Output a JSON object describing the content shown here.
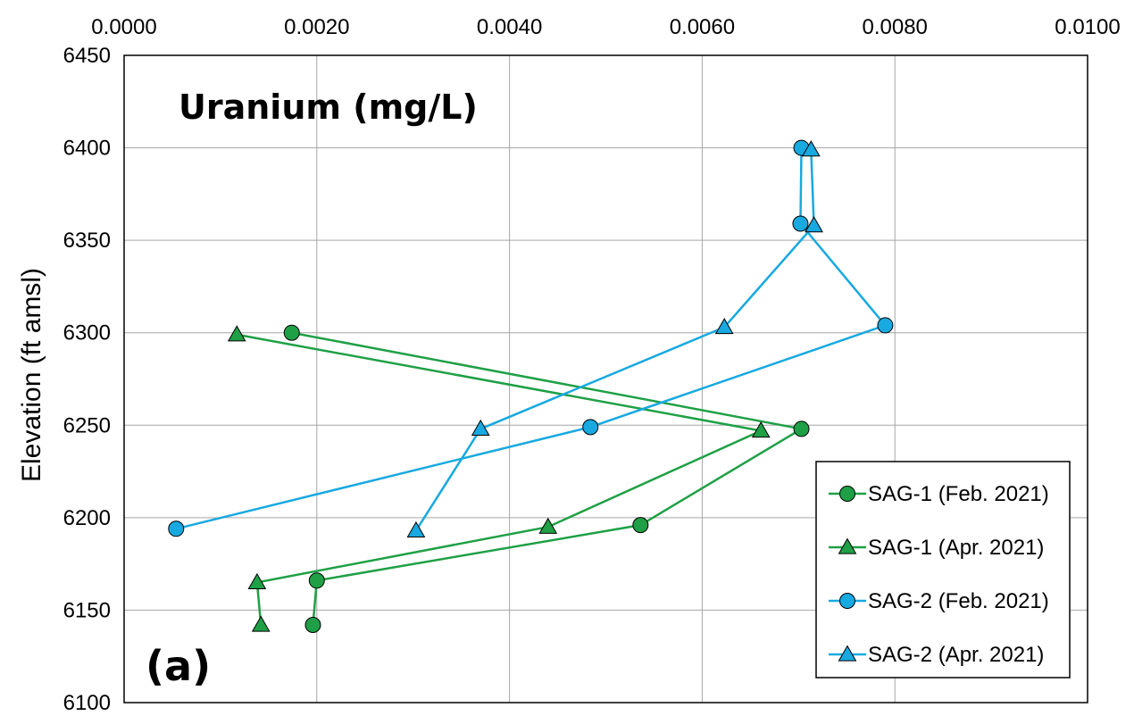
{
  "chart_data": {
    "type": "line",
    "title": "Uranium (mg/L)",
    "panel_label": "(a)",
    "xlabel": "",
    "ylabel": "Elevation (ft amsl)",
    "x_axis_position": "top",
    "xlim": [
      0,
      0.01
    ],
    "ylim": [
      6100,
      6450
    ],
    "x_ticks": [
      "0.0000",
      "0.0020",
      "0.0040",
      "0.0060",
      "0.0080",
      "0.0100"
    ],
    "y_ticks": [
      "6100",
      "6150",
      "6200",
      "6250",
      "6300",
      "6350",
      "6400",
      "6450"
    ],
    "grid": true,
    "legend_position": "bottom-right",
    "series": [
      {
        "name": "SAG-1 (Feb. 2021)",
        "color": "#1fa046",
        "marker": "circle",
        "x": [
          0.00196,
          0.002,
          0.00536,
          0.00703,
          0.00174
        ],
        "y": [
          6142,
          6166,
          6196,
          6248,
          6300
        ]
      },
      {
        "name": "SAG-1 (Apr. 2021)",
        "color": "#1fa046",
        "marker": "triangle",
        "x": [
          0.00142,
          0.00138,
          0.0044,
          0.00661,
          0.00117
        ],
        "y": [
          6142,
          6165,
          6195,
          6247,
          6299
        ]
      },
      {
        "name": "SAG-2 (Feb. 2021)",
        "color": "#18a9e0",
        "marker": "circle",
        "x": [
          0.00054,
          0.00484,
          0.0079,
          0.00702,
          0.00703
        ],
        "y": [
          6194,
          6249,
          6304,
          6359,
          6400
        ]
      },
      {
        "name": "SAG-2 (Apr. 2021)",
        "color": "#18a9e0",
        "marker": "triangle",
        "x": [
          0.00303,
          0.0037,
          0.00623,
          0.00716,
          0.00713
        ],
        "y": [
          6193,
          6248,
          6303,
          6358,
          6399
        ]
      }
    ]
  }
}
